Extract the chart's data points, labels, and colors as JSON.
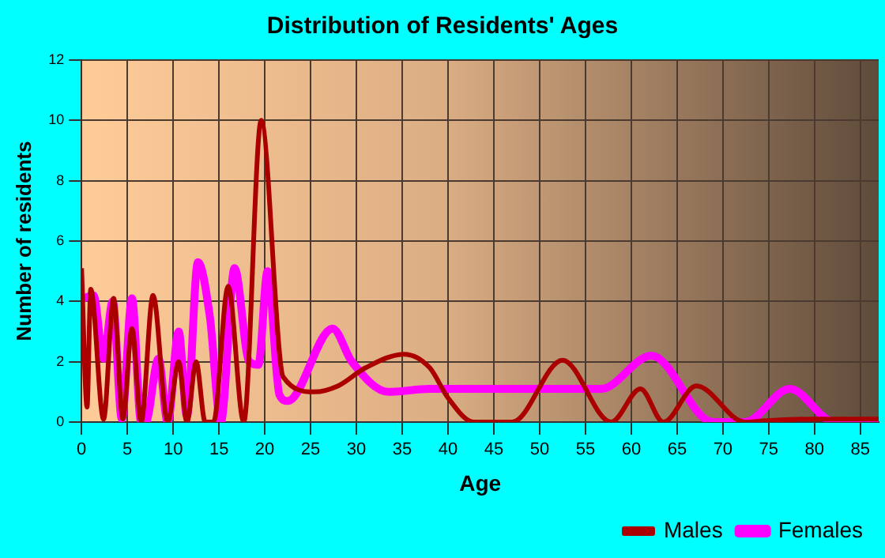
{
  "chart_data": {
    "type": "line",
    "title": "Distribution of Residents' Ages",
    "xlabel": "Age",
    "ylabel": "Number of residents",
    "xlim": [
      0,
      87
    ],
    "xticks": [
      0,
      5,
      10,
      15,
      20,
      25,
      30,
      35,
      40,
      45,
      50,
      55,
      60,
      65,
      70,
      75,
      80,
      85
    ],
    "ylim": [
      0,
      12
    ],
    "yticks": [
      0,
      2,
      4,
      6,
      8,
      10,
      12
    ],
    "grid": true,
    "legend": "bottom right",
    "marker": "none",
    "series": [
      {
        "name": "Males",
        "color": "#aa0000",
        "x": [
          0,
          0.6,
          1,
          2.4,
          3.5,
          4.5,
          5.5,
          6.5,
          7.8,
          9.4,
          10.6,
          11.5,
          12.5,
          13.5,
          14.4,
          16,
          17.7,
          19.6,
          22,
          25.4,
          28,
          31,
          35.2,
          38,
          40,
          42.8,
          47,
          52.5,
          57.8,
          61,
          63.5,
          67.1,
          72.4,
          75,
          80,
          87
        ],
        "values": [
          5.1,
          0.5,
          4.4,
          0.1,
          4.1,
          0.1,
          3.1,
          0,
          4.2,
          0,
          2,
          0,
          2,
          0,
          0,
          4.5,
          0,
          10,
          1.5,
          1,
          1.2,
          1.8,
          2.25,
          1.8,
          0.8,
          0,
          0,
          2.05,
          0,
          1.1,
          0,
          1.2,
          0,
          0.05,
          0.1,
          0.1
        ]
      },
      {
        "name": "Females",
        "color": "#ff00ff",
        "x": [
          0.2,
          1.3,
          2.4,
          3.4,
          4.4,
          5.5,
          6.5,
          7,
          8.4,
          9.4,
          10.6,
          11.5,
          12.7,
          14,
          15.2,
          16.7,
          18.3,
          19.3,
          20.3,
          21.6,
          22.5,
          27.4,
          29.5,
          33.5,
          38,
          56.7,
          62.2,
          68.9,
          72.4,
          77.3,
          82.2,
          87
        ],
        "values": [
          4.1,
          4.2,
          2.1,
          4,
          0.1,
          4.1,
          0,
          0,
          2.1,
          0,
          3,
          0.2,
          5.3,
          3.5,
          0,
          5.1,
          2,
          1.9,
          5,
          0.9,
          0.7,
          3.1,
          2,
          1,
          1.1,
          1.1,
          2.2,
          0,
          0,
          1.1,
          0,
          0
        ]
      }
    ]
  }
}
